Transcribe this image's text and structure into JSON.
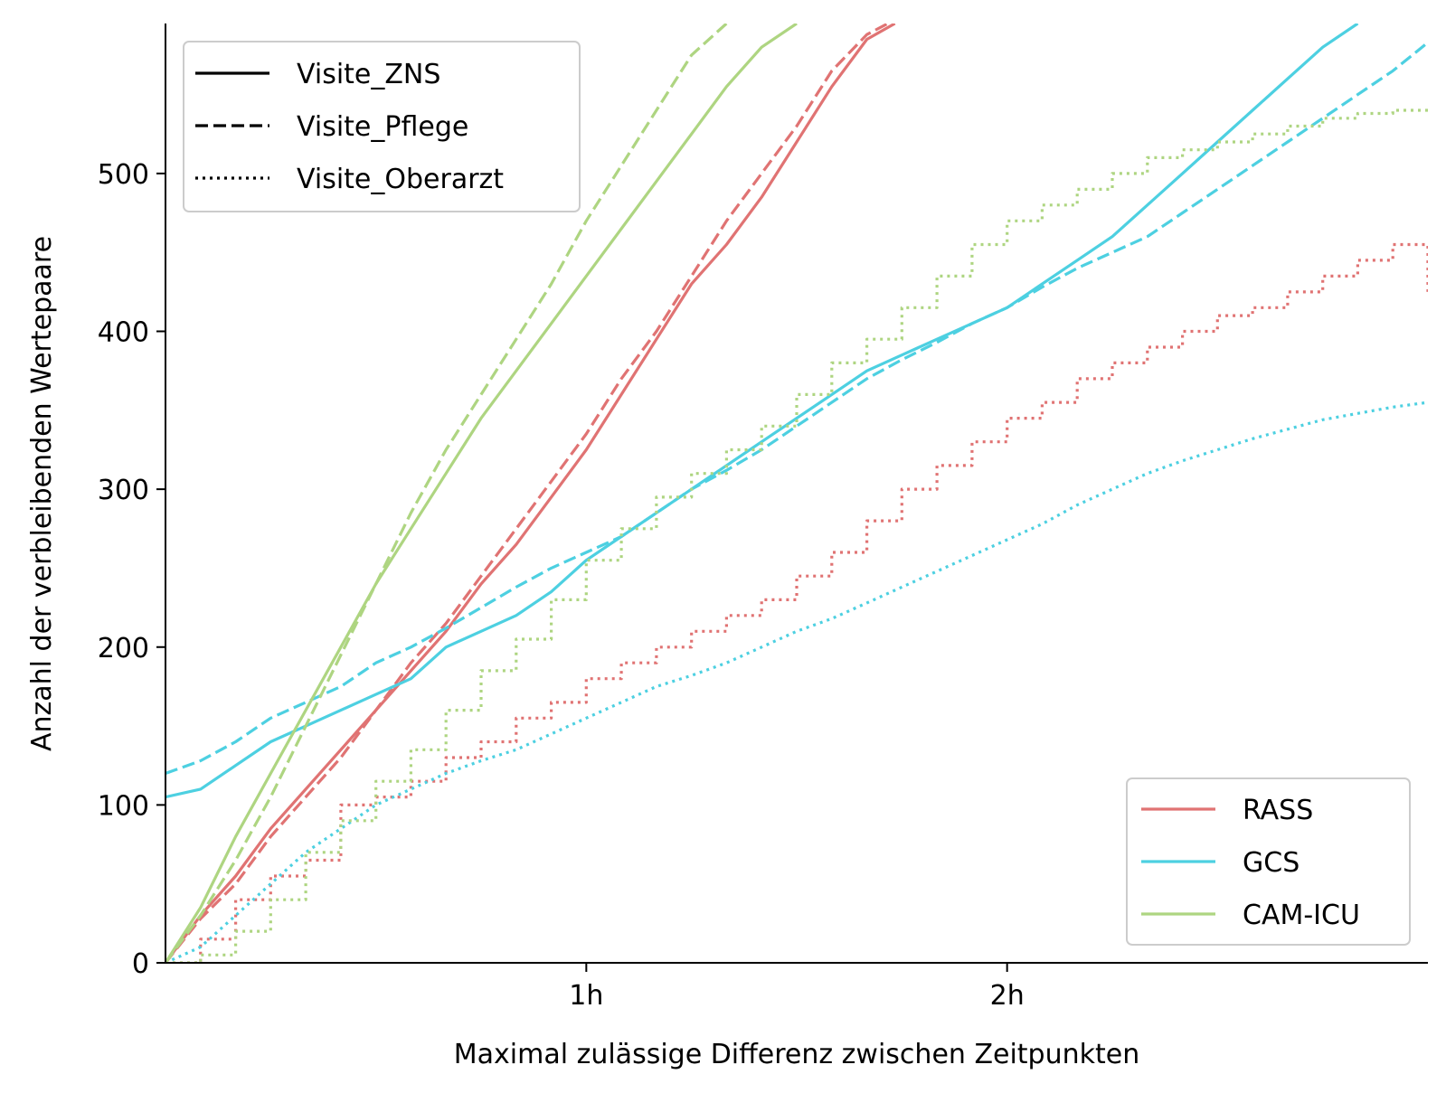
{
  "chart_data": {
    "type": "line",
    "title": "",
    "xlabel": "Maximal zulässige Differenz zwischen Zeitpunkten",
    "ylabel": "Anzahl der verbleibenden Wertepaare",
    "x_unit": "minutes",
    "xlim": [
      0,
      180
    ],
    "ylim": [
      0,
      595
    ],
    "x_ticks": [
      {
        "value": 60,
        "label": "1h"
      },
      {
        "value": 120,
        "label": "2h"
      }
    ],
    "y_ticks": [
      {
        "value": 0,
        "label": "0"
      },
      {
        "value": 100,
        "label": "100"
      },
      {
        "value": 200,
        "label": "200"
      },
      {
        "value": 300,
        "label": "300"
      },
      {
        "value": 400,
        "label": "400"
      },
      {
        "value": 500,
        "label": "500"
      }
    ],
    "grid": false,
    "style_legend": {
      "placement": "top-left",
      "entries": [
        {
          "label": "Visite_ZNS",
          "dash": "solid"
        },
        {
          "label": "Visite_Pflege",
          "dash": "dashed"
        },
        {
          "label": "Visite_Oberarzt",
          "dash": "dotted"
        }
      ]
    },
    "color_legend": {
      "placement": "bottom-right",
      "entries": [
        {
          "label": "RASS",
          "color": "#e07373"
        },
        {
          "label": "GCS",
          "color": "#4dd0e1"
        },
        {
          "label": "CAM-ICU",
          "color": "#aed581"
        }
      ]
    },
    "series": [
      {
        "score": "RASS",
        "visit": "Visite_ZNS",
        "color": "#e07373",
        "dash": "solid",
        "step": false,
        "points": [
          [
            0,
            0
          ],
          [
            5,
            30
          ],
          [
            10,
            55
          ],
          [
            15,
            85
          ],
          [
            20,
            110
          ],
          [
            25,
            135
          ],
          [
            30,
            160
          ],
          [
            35,
            185
          ],
          [
            40,
            210
          ],
          [
            45,
            240
          ],
          [
            50,
            265
          ],
          [
            55,
            295
          ],
          [
            60,
            325
          ],
          [
            65,
            360
          ],
          [
            70,
            395
          ],
          [
            75,
            430
          ],
          [
            80,
            455
          ],
          [
            85,
            485
          ],
          [
            90,
            520
          ],
          [
            95,
            555
          ],
          [
            100,
            585
          ],
          [
            104,
            595
          ]
        ]
      },
      {
        "score": "RASS",
        "visit": "Visite_Pflege",
        "color": "#e07373",
        "dash": "dashed",
        "step": false,
        "points": [
          [
            0,
            0
          ],
          [
            5,
            28
          ],
          [
            10,
            50
          ],
          [
            15,
            80
          ],
          [
            20,
            105
          ],
          [
            25,
            130
          ],
          [
            30,
            160
          ],
          [
            35,
            190
          ],
          [
            40,
            215
          ],
          [
            45,
            245
          ],
          [
            50,
            275
          ],
          [
            55,
            305
          ],
          [
            60,
            335
          ],
          [
            65,
            370
          ],
          [
            70,
            400
          ],
          [
            75,
            435
          ],
          [
            80,
            470
          ],
          [
            85,
            500
          ],
          [
            90,
            530
          ],
          [
            95,
            565
          ],
          [
            100,
            588
          ],
          [
            103,
            595
          ]
        ]
      },
      {
        "score": "RASS",
        "visit": "Visite_Oberarzt",
        "color": "#e07373",
        "dash": "dotted",
        "step": true,
        "points": [
          [
            0,
            0
          ],
          [
            5,
            15
          ],
          [
            10,
            40
          ],
          [
            15,
            55
          ],
          [
            20,
            65
          ],
          [
            25,
            100
          ],
          [
            30,
            105
          ],
          [
            35,
            115
          ],
          [
            40,
            130
          ],
          [
            45,
            140
          ],
          [
            50,
            155
          ],
          [
            55,
            165
          ],
          [
            60,
            180
          ],
          [
            65,
            190
          ],
          [
            70,
            200
          ],
          [
            75,
            210
          ],
          [
            80,
            220
          ],
          [
            85,
            230
          ],
          [
            90,
            245
          ],
          [
            95,
            260
          ],
          [
            100,
            280
          ],
          [
            105,
            300
          ],
          [
            110,
            315
          ],
          [
            115,
            330
          ],
          [
            120,
            345
          ],
          [
            125,
            355
          ],
          [
            130,
            370
          ],
          [
            135,
            380
          ],
          [
            140,
            390
          ],
          [
            145,
            400
          ],
          [
            150,
            410
          ],
          [
            155,
            415
          ],
          [
            160,
            425
          ],
          [
            165,
            435
          ],
          [
            170,
            445
          ],
          [
            175,
            455
          ],
          [
            180,
            425
          ]
        ]
      },
      {
        "score": "GCS",
        "visit": "Visite_ZNS",
        "color": "#4dd0e1",
        "dash": "solid",
        "step": false,
        "points": [
          [
            0,
            105
          ],
          [
            5,
            110
          ],
          [
            10,
            125
          ],
          [
            15,
            140
          ],
          [
            20,
            150
          ],
          [
            25,
            160
          ],
          [
            30,
            170
          ],
          [
            35,
            180
          ],
          [
            40,
            200
          ],
          [
            45,
            210
          ],
          [
            50,
            220
          ],
          [
            55,
            235
          ],
          [
            60,
            255
          ],
          [
            65,
            270
          ],
          [
            70,
            285
          ],
          [
            75,
            300
          ],
          [
            80,
            315
          ],
          [
            85,
            330
          ],
          [
            90,
            345
          ],
          [
            95,
            360
          ],
          [
            100,
            375
          ],
          [
            105,
            385
          ],
          [
            110,
            395
          ],
          [
            115,
            405
          ],
          [
            120,
            415
          ],
          [
            125,
            430
          ],
          [
            130,
            445
          ],
          [
            135,
            460
          ],
          [
            140,
            480
          ],
          [
            145,
            500
          ],
          [
            150,
            520
          ],
          [
            155,
            540
          ],
          [
            160,
            560
          ],
          [
            165,
            580
          ],
          [
            170,
            595
          ]
        ]
      },
      {
        "score": "GCS",
        "visit": "Visite_Pflege",
        "color": "#4dd0e1",
        "dash": "dashed",
        "step": false,
        "points": [
          [
            0,
            120
          ],
          [
            5,
            128
          ],
          [
            10,
            140
          ],
          [
            15,
            155
          ],
          [
            20,
            165
          ],
          [
            25,
            175
          ],
          [
            30,
            190
          ],
          [
            35,
            200
          ],
          [
            40,
            212
          ],
          [
            45,
            225
          ],
          [
            50,
            238
          ],
          [
            55,
            250
          ],
          [
            60,
            260
          ],
          [
            65,
            270
          ],
          [
            70,
            285
          ],
          [
            75,
            300
          ],
          [
            80,
            312
          ],
          [
            85,
            325
          ],
          [
            90,
            340
          ],
          [
            95,
            355
          ],
          [
            100,
            370
          ],
          [
            105,
            382
          ],
          [
            110,
            393
          ],
          [
            115,
            405
          ],
          [
            120,
            415
          ],
          [
            125,
            428
          ],
          [
            130,
            440
          ],
          [
            135,
            450
          ],
          [
            140,
            460
          ],
          [
            145,
            475
          ],
          [
            150,
            490
          ],
          [
            155,
            505
          ],
          [
            160,
            520
          ],
          [
            165,
            535
          ],
          [
            170,
            550
          ],
          [
            175,
            565
          ],
          [
            180,
            583
          ]
        ]
      },
      {
        "score": "GCS",
        "visit": "Visite_Oberarzt",
        "color": "#4dd0e1",
        "dash": "dotted",
        "step": false,
        "points": [
          [
            0,
            0
          ],
          [
            5,
            10
          ],
          [
            10,
            30
          ],
          [
            15,
            50
          ],
          [
            20,
            70
          ],
          [
            25,
            85
          ],
          [
            30,
            100
          ],
          [
            35,
            110
          ],
          [
            40,
            120
          ],
          [
            45,
            128
          ],
          [
            50,
            135
          ],
          [
            55,
            145
          ],
          [
            60,
            155
          ],
          [
            65,
            165
          ],
          [
            70,
            175
          ],
          [
            75,
            182
          ],
          [
            80,
            190
          ],
          [
            85,
            200
          ],
          [
            90,
            210
          ],
          [
            95,
            218
          ],
          [
            100,
            228
          ],
          [
            105,
            238
          ],
          [
            110,
            248
          ],
          [
            115,
            258
          ],
          [
            120,
            268
          ],
          [
            125,
            278
          ],
          [
            130,
            290
          ],
          [
            135,
            300
          ],
          [
            140,
            310
          ],
          [
            145,
            318
          ],
          [
            150,
            325
          ],
          [
            155,
            332
          ],
          [
            160,
            338
          ],
          [
            165,
            344
          ],
          [
            170,
            348
          ],
          [
            175,
            352
          ],
          [
            180,
            355
          ]
        ]
      },
      {
        "score": "CAM-ICU",
        "visit": "Visite_ZNS",
        "color": "#aed581",
        "dash": "solid",
        "step": false,
        "points": [
          [
            0,
            0
          ],
          [
            5,
            35
          ],
          [
            10,
            80
          ],
          [
            15,
            120
          ],
          [
            20,
            160
          ],
          [
            25,
            200
          ],
          [
            30,
            240
          ],
          [
            35,
            275
          ],
          [
            40,
            310
          ],
          [
            45,
            345
          ],
          [
            50,
            375
          ],
          [
            55,
            405
          ],
          [
            60,
            435
          ],
          [
            65,
            465
          ],
          [
            70,
            495
          ],
          [
            75,
            525
          ],
          [
            80,
            555
          ],
          [
            85,
            580
          ],
          [
            90,
            595
          ]
        ]
      },
      {
        "score": "CAM-ICU",
        "visit": "Visite_Pflege",
        "color": "#aed581",
        "dash": "dashed",
        "step": false,
        "points": [
          [
            0,
            0
          ],
          [
            5,
            30
          ],
          [
            10,
            65
          ],
          [
            15,
            105
          ],
          [
            20,
            150
          ],
          [
            25,
            195
          ],
          [
            30,
            240
          ],
          [
            35,
            285
          ],
          [
            40,
            325
          ],
          [
            45,
            360
          ],
          [
            50,
            395
          ],
          [
            55,
            430
          ],
          [
            60,
            470
          ],
          [
            65,
            505
          ],
          [
            70,
            540
          ],
          [
            75,
            575
          ],
          [
            80,
            595
          ]
        ]
      },
      {
        "score": "CAM-ICU",
        "visit": "Visite_Oberarzt",
        "color": "#aed581",
        "dash": "dotted",
        "step": true,
        "points": [
          [
            0,
            0
          ],
          [
            5,
            5
          ],
          [
            10,
            20
          ],
          [
            15,
            40
          ],
          [
            20,
            70
          ],
          [
            25,
            90
          ],
          [
            30,
            115
          ],
          [
            35,
            135
          ],
          [
            40,
            160
          ],
          [
            45,
            185
          ],
          [
            50,
            205
          ],
          [
            55,
            230
          ],
          [
            60,
            255
          ],
          [
            65,
            275
          ],
          [
            70,
            295
          ],
          [
            75,
            310
          ],
          [
            80,
            325
          ],
          [
            85,
            340
          ],
          [
            90,
            360
          ],
          [
            95,
            380
          ],
          [
            100,
            395
          ],
          [
            105,
            415
          ],
          [
            110,
            435
          ],
          [
            115,
            455
          ],
          [
            120,
            470
          ],
          [
            125,
            480
          ],
          [
            130,
            490
          ],
          [
            135,
            500
          ],
          [
            140,
            510
          ],
          [
            145,
            515
          ],
          [
            150,
            520
          ],
          [
            155,
            525
          ],
          [
            160,
            530
          ],
          [
            165,
            535
          ],
          [
            170,
            538
          ],
          [
            175,
            540
          ],
          [
            180,
            542
          ]
        ]
      }
    ]
  }
}
